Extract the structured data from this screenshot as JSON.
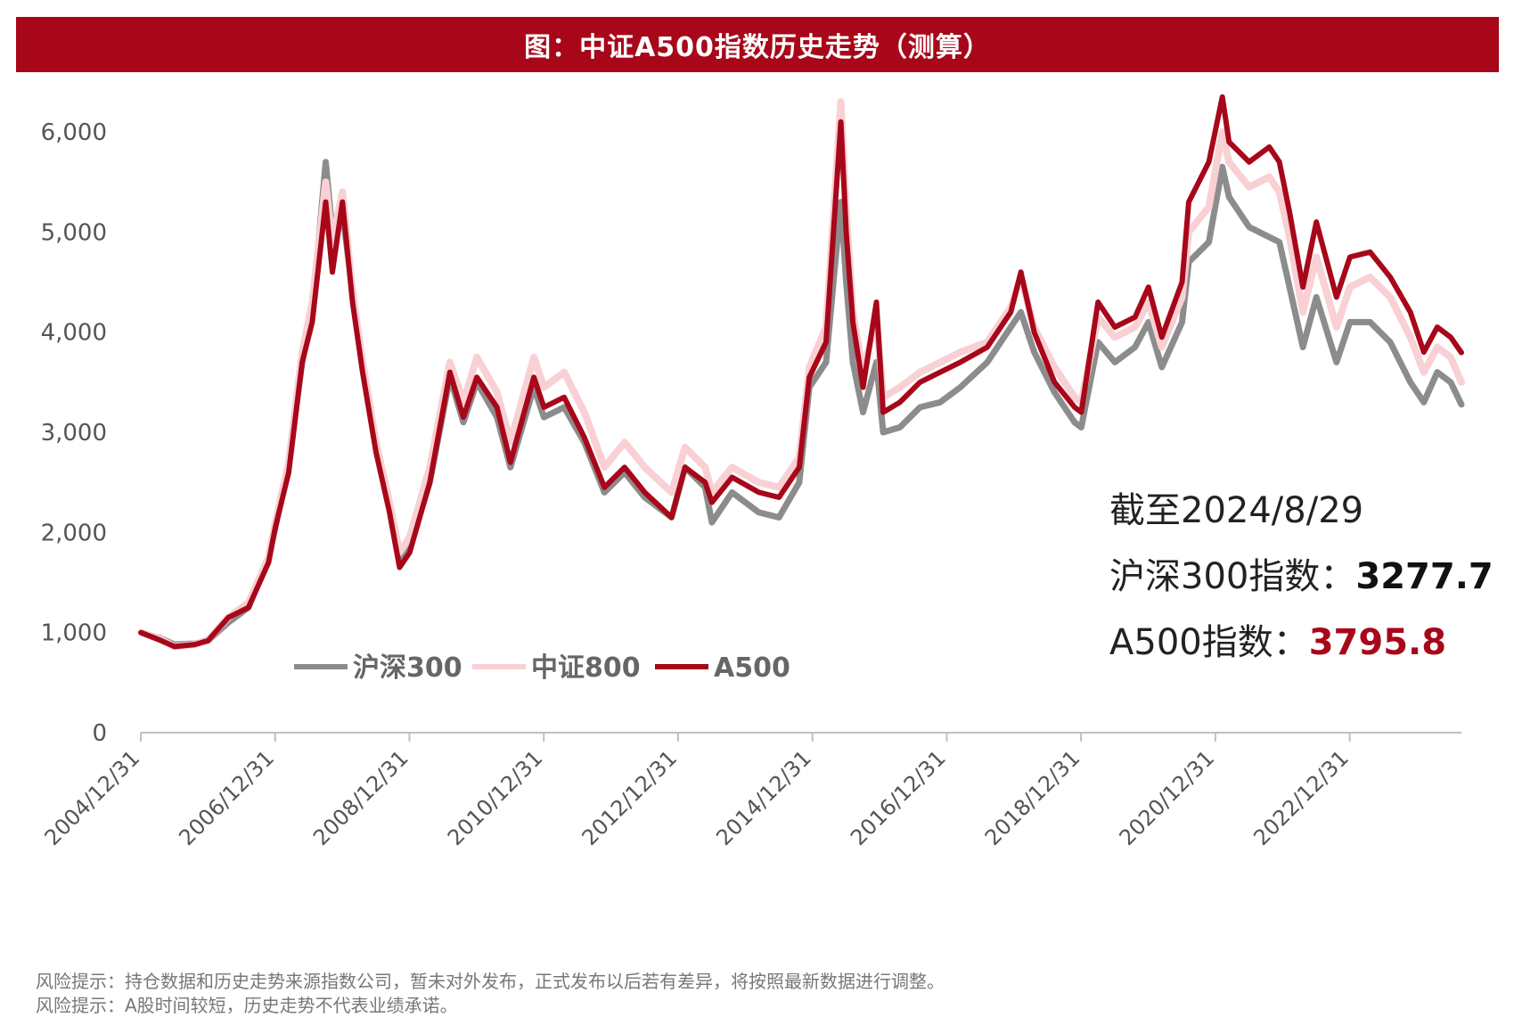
{
  "chart_data": {
    "type": "line",
    "title": "图：中证A500指数历史走势（测算）",
    "x_ticks": [
      "2004/12/31",
      "2006/12/31",
      "2008/12/31",
      "2010/12/31",
      "2012/12/31",
      "2014/12/31",
      "2016/12/31",
      "2018/12/31",
      "2020/12/31",
      "2022/12/31"
    ],
    "y_ticks": [
      "0",
      "1,000",
      "2,000",
      "3,000",
      "4,000",
      "5,000",
      "6,000"
    ],
    "ylim": [
      0,
      6300
    ],
    "xlim": [
      2004.997,
      2024.66
    ],
    "grid": false,
    "legend_position": "bottom-left",
    "colors": {
      "csi300": "#8c8c8c",
      "csi800": "#f9d0d3",
      "a500": "#a8071a"
    },
    "series": [
      {
        "name": "沪深300",
        "key": "csi300",
        "points": [
          [
            2005.0,
            1000
          ],
          [
            2005.3,
            940
          ],
          [
            2005.5,
            880
          ],
          [
            2005.8,
            890
          ],
          [
            2006.0,
            920
          ],
          [
            2006.3,
            1100
          ],
          [
            2006.6,
            1250
          ],
          [
            2006.9,
            1750
          ],
          [
            2007.0,
            2050
          ],
          [
            2007.2,
            2700
          ],
          [
            2007.4,
            3700
          ],
          [
            2007.55,
            4200
          ],
          [
            2007.75,
            5700
          ],
          [
            2007.85,
            5000
          ],
          [
            2008.0,
            5200
          ],
          [
            2008.15,
            4400
          ],
          [
            2008.3,
            3650
          ],
          [
            2008.5,
            2900
          ],
          [
            2008.7,
            2300
          ],
          [
            2008.85,
            1700
          ],
          [
            2009.0,
            1850
          ],
          [
            2009.3,
            2500
          ],
          [
            2009.6,
            3550
          ],
          [
            2009.8,
            3100
          ],
          [
            2010.0,
            3500
          ],
          [
            2010.3,
            3150
          ],
          [
            2010.5,
            2650
          ],
          [
            2010.85,
            3450
          ],
          [
            2011.0,
            3150
          ],
          [
            2011.3,
            3250
          ],
          [
            2011.6,
            2900
          ],
          [
            2011.9,
            2400
          ],
          [
            2012.2,
            2600
          ],
          [
            2012.5,
            2350
          ],
          [
            2012.9,
            2150
          ],
          [
            2013.1,
            2650
          ],
          [
            2013.4,
            2450
          ],
          [
            2013.5,
            2100
          ],
          [
            2013.8,
            2400
          ],
          [
            2014.2,
            2200
          ],
          [
            2014.5,
            2150
          ],
          [
            2014.8,
            2500
          ],
          [
            2014.95,
            3450
          ],
          [
            2015.2,
            3700
          ],
          [
            2015.42,
            5300
          ],
          [
            2015.5,
            4500
          ],
          [
            2015.6,
            3700
          ],
          [
            2015.75,
            3200
          ],
          [
            2015.95,
            3700
          ],
          [
            2016.05,
            3000
          ],
          [
            2016.3,
            3050
          ],
          [
            2016.6,
            3250
          ],
          [
            2016.9,
            3300
          ],
          [
            2017.2,
            3450
          ],
          [
            2017.6,
            3700
          ],
          [
            2017.95,
            4050
          ],
          [
            2018.1,
            4200
          ],
          [
            2018.3,
            3800
          ],
          [
            2018.6,
            3400
          ],
          [
            2018.9,
            3100
          ],
          [
            2019.0,
            3050
          ],
          [
            2019.25,
            3900
          ],
          [
            2019.5,
            3700
          ],
          [
            2019.8,
            3850
          ],
          [
            2020.0,
            4100
          ],
          [
            2020.2,
            3650
          ],
          [
            2020.5,
            4100
          ],
          [
            2020.6,
            4700
          ],
          [
            2020.9,
            4900
          ],
          [
            2021.1,
            5650
          ],
          [
            2021.2,
            5350
          ],
          [
            2021.5,
            5050
          ],
          [
            2021.8,
            4950
          ],
          [
            2021.95,
            4900
          ],
          [
            2022.1,
            4450
          ],
          [
            2022.3,
            3850
          ],
          [
            2022.5,
            4350
          ],
          [
            2022.8,
            3700
          ],
          [
            2023.0,
            4100
          ],
          [
            2023.3,
            4100
          ],
          [
            2023.6,
            3900
          ],
          [
            2023.9,
            3500
          ],
          [
            2024.1,
            3300
          ],
          [
            2024.3,
            3600
          ],
          [
            2024.5,
            3500
          ],
          [
            2024.66,
            3278
          ]
        ]
      },
      {
        "name": "中证800",
        "key": "csi800",
        "points": [
          [
            2005.0,
            1000
          ],
          [
            2005.3,
            930
          ],
          [
            2005.5,
            860
          ],
          [
            2005.8,
            880
          ],
          [
            2006.0,
            930
          ],
          [
            2006.3,
            1150
          ],
          [
            2006.6,
            1300
          ],
          [
            2006.9,
            1750
          ],
          [
            2007.0,
            2100
          ],
          [
            2007.2,
            2700
          ],
          [
            2007.4,
            3800
          ],
          [
            2007.55,
            4300
          ],
          [
            2007.75,
            5500
          ],
          [
            2007.85,
            4900
          ],
          [
            2008.0,
            5400
          ],
          [
            2008.15,
            4400
          ],
          [
            2008.3,
            3700
          ],
          [
            2008.5,
            2900
          ],
          [
            2008.7,
            2300
          ],
          [
            2008.85,
            1800
          ],
          [
            2009.0,
            1950
          ],
          [
            2009.3,
            2650
          ],
          [
            2009.6,
            3700
          ],
          [
            2009.8,
            3300
          ],
          [
            2010.0,
            3750
          ],
          [
            2010.3,
            3400
          ],
          [
            2010.5,
            2900
          ],
          [
            2010.85,
            3750
          ],
          [
            2011.0,
            3450
          ],
          [
            2011.3,
            3600
          ],
          [
            2011.6,
            3200
          ],
          [
            2011.9,
            2650
          ],
          [
            2012.2,
            2900
          ],
          [
            2012.5,
            2650
          ],
          [
            2012.9,
            2400
          ],
          [
            2013.1,
            2850
          ],
          [
            2013.4,
            2650
          ],
          [
            2013.5,
            2400
          ],
          [
            2013.8,
            2650
          ],
          [
            2014.2,
            2500
          ],
          [
            2014.5,
            2450
          ],
          [
            2014.8,
            2750
          ],
          [
            2014.95,
            3650
          ],
          [
            2015.2,
            4050
          ],
          [
            2015.42,
            6300
          ],
          [
            2015.5,
            5200
          ],
          [
            2015.6,
            4200
          ],
          [
            2015.75,
            3600
          ],
          [
            2015.95,
            4150
          ],
          [
            2016.05,
            3350
          ],
          [
            2016.3,
            3450
          ],
          [
            2016.6,
            3600
          ],
          [
            2016.9,
            3700
          ],
          [
            2017.2,
            3800
          ],
          [
            2017.6,
            3900
          ],
          [
            2017.95,
            4250
          ],
          [
            2018.1,
            4550
          ],
          [
            2018.3,
            4050
          ],
          [
            2018.6,
            3650
          ],
          [
            2018.9,
            3350
          ],
          [
            2019.0,
            3300
          ],
          [
            2019.25,
            4150
          ],
          [
            2019.5,
            3950
          ],
          [
            2019.8,
            4050
          ],
          [
            2020.0,
            4300
          ],
          [
            2020.2,
            3850
          ],
          [
            2020.5,
            4350
          ],
          [
            2020.6,
            5000
          ],
          [
            2020.9,
            5250
          ],
          [
            2021.1,
            6000
          ],
          [
            2021.2,
            5700
          ],
          [
            2021.5,
            5450
          ],
          [
            2021.8,
            5550
          ],
          [
            2021.95,
            5400
          ],
          [
            2022.1,
            4950
          ],
          [
            2022.3,
            4200
          ],
          [
            2022.5,
            4750
          ],
          [
            2022.8,
            4050
          ],
          [
            2023.0,
            4450
          ],
          [
            2023.3,
            4550
          ],
          [
            2023.6,
            4350
          ],
          [
            2023.9,
            3950
          ],
          [
            2024.1,
            3600
          ],
          [
            2024.3,
            3850
          ],
          [
            2024.5,
            3750
          ],
          [
            2024.66,
            3500
          ]
        ]
      },
      {
        "name": "A500",
        "key": "a500",
        "points": [
          [
            2005.0,
            1000
          ],
          [
            2005.3,
            920
          ],
          [
            2005.5,
            860
          ],
          [
            2005.8,
            880
          ],
          [
            2006.0,
            920
          ],
          [
            2006.3,
            1150
          ],
          [
            2006.6,
            1250
          ],
          [
            2006.9,
            1700
          ],
          [
            2007.0,
            2050
          ],
          [
            2007.2,
            2600
          ],
          [
            2007.4,
            3700
          ],
          [
            2007.55,
            4100
          ],
          [
            2007.75,
            5300
          ],
          [
            2007.85,
            4600
          ],
          [
            2008.0,
            5300
          ],
          [
            2008.15,
            4300
          ],
          [
            2008.3,
            3600
          ],
          [
            2008.5,
            2800
          ],
          [
            2008.7,
            2200
          ],
          [
            2008.85,
            1650
          ],
          [
            2009.0,
            1800
          ],
          [
            2009.3,
            2500
          ],
          [
            2009.6,
            3600
          ],
          [
            2009.8,
            3150
          ],
          [
            2010.0,
            3550
          ],
          [
            2010.3,
            3250
          ],
          [
            2010.5,
            2700
          ],
          [
            2010.85,
            3550
          ],
          [
            2011.0,
            3250
          ],
          [
            2011.3,
            3350
          ],
          [
            2011.6,
            2950
          ],
          [
            2011.9,
            2450
          ],
          [
            2012.2,
            2650
          ],
          [
            2012.5,
            2400
          ],
          [
            2012.9,
            2150
          ],
          [
            2013.1,
            2650
          ],
          [
            2013.4,
            2500
          ],
          [
            2013.5,
            2300
          ],
          [
            2013.8,
            2550
          ],
          [
            2014.2,
            2400
          ],
          [
            2014.5,
            2350
          ],
          [
            2014.8,
            2650
          ],
          [
            2014.95,
            3550
          ],
          [
            2015.2,
            3900
          ],
          [
            2015.42,
            6100
          ],
          [
            2015.5,
            5000
          ],
          [
            2015.6,
            4100
          ],
          [
            2015.75,
            3450
          ],
          [
            2015.95,
            4300
          ],
          [
            2016.05,
            3200
          ],
          [
            2016.3,
            3300
          ],
          [
            2016.6,
            3500
          ],
          [
            2016.9,
            3600
          ],
          [
            2017.2,
            3700
          ],
          [
            2017.6,
            3850
          ],
          [
            2017.95,
            4200
          ],
          [
            2018.1,
            4600
          ],
          [
            2018.3,
            4000
          ],
          [
            2018.6,
            3500
          ],
          [
            2018.9,
            3250
          ],
          [
            2019.0,
            3200
          ],
          [
            2019.25,
            4300
          ],
          [
            2019.5,
            4050
          ],
          [
            2019.8,
            4150
          ],
          [
            2020.0,
            4450
          ],
          [
            2020.2,
            3950
          ],
          [
            2020.5,
            4500
          ],
          [
            2020.6,
            5300
          ],
          [
            2020.9,
            5700
          ],
          [
            2021.1,
            6350
          ],
          [
            2021.2,
            5900
          ],
          [
            2021.5,
            5700
          ],
          [
            2021.8,
            5850
          ],
          [
            2021.95,
            5700
          ],
          [
            2022.1,
            5200
          ],
          [
            2022.3,
            4450
          ],
          [
            2022.5,
            5100
          ],
          [
            2022.8,
            4350
          ],
          [
            2023.0,
            4750
          ],
          [
            2023.3,
            4800
          ],
          [
            2023.6,
            4550
          ],
          [
            2023.9,
            4200
          ],
          [
            2024.1,
            3800
          ],
          [
            2024.3,
            4050
          ],
          [
            2024.5,
            3950
          ],
          [
            2024.66,
            3796
          ]
        ]
      }
    ],
    "annotation": {
      "date_line": "截至2024/8/29",
      "csi300_label": "沪深300指数：",
      "csi300_value": "3277.7",
      "a500_label": "A500指数：",
      "a500_value": "3795.8"
    }
  },
  "notes": [
    "风险提示：持仓数据和历史走势来源指数公司，暂未对外发布，正式发布以后若有差异，将按照最新数据进行调整。",
    "风险提示：A股时间较短，历史走势不代表业绩承诺。"
  ]
}
